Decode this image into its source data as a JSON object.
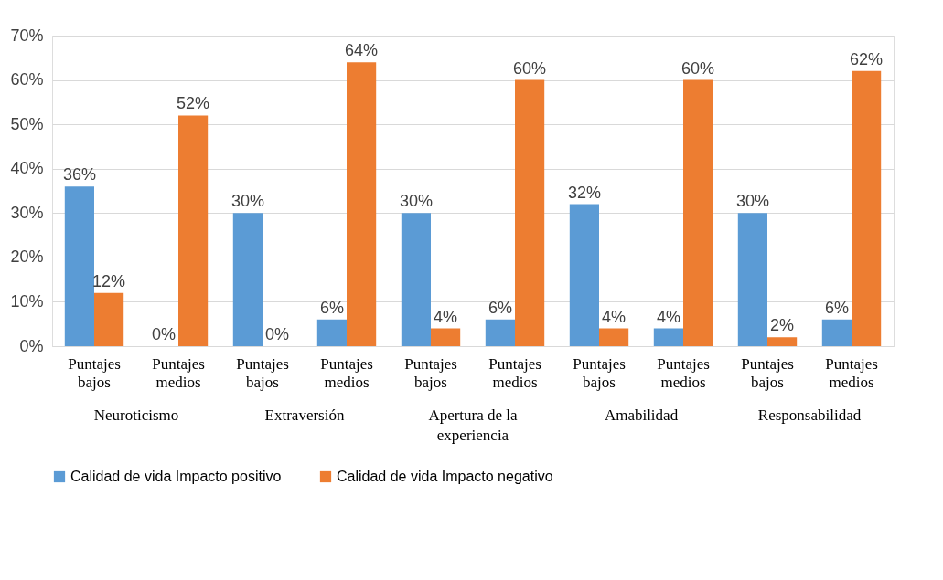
{
  "chart_data": {
    "type": "bar",
    "categories": [
      "Puntajes bajos",
      "Puntajes medios",
      "Puntajes bajos",
      "Puntajes medios",
      "Puntajes bajos",
      "Puntajes medios",
      "Puntajes bajos",
      "Puntajes medios",
      "Puntajes bajos",
      "Puntajes medios"
    ],
    "annotations": [
      "Neuroticismo",
      "Extraversión",
      "Apertura de la experiencia",
      "Amabilidad",
      "Responsabilidad"
    ],
    "series": [
      {
        "name": "Calidad de vida Impacto positivo",
        "color": "#5b9bd5",
        "values": [
          36,
          0,
          30,
          6,
          30,
          6,
          32,
          4,
          30,
          6
        ],
        "value_labels": [
          "36%",
          "0%",
          "30%",
          "6%",
          "30%",
          "6%",
          "32%",
          "4%",
          "30%",
          "6%"
        ]
      },
      {
        "name": "Calidad de vida Impacto negativo",
        "color": "#ed7d31",
        "values": [
          12,
          52,
          0,
          64,
          4,
          60,
          4,
          60,
          2,
          62
        ],
        "value_labels": [
          "12%",
          "52%",
          "0%",
          "64%",
          "4%",
          "60%",
          "4%",
          "60%",
          "2%",
          "62%"
        ]
      }
    ],
    "ylim": [
      0,
      70
    ],
    "yticks": [
      {
        "value": 0,
        "label": "0%"
      },
      {
        "value": 10,
        "label": "10%"
      },
      {
        "value": 20,
        "label": "20%"
      },
      {
        "value": 30,
        "label": "30%"
      },
      {
        "value": 40,
        "label": "40%"
      },
      {
        "value": 50,
        "label": "50%"
      },
      {
        "value": 60,
        "label": "60%"
      },
      {
        "value": 70,
        "label": "70%"
      }
    ],
    "grid": "y",
    "legend": "bottom"
  }
}
